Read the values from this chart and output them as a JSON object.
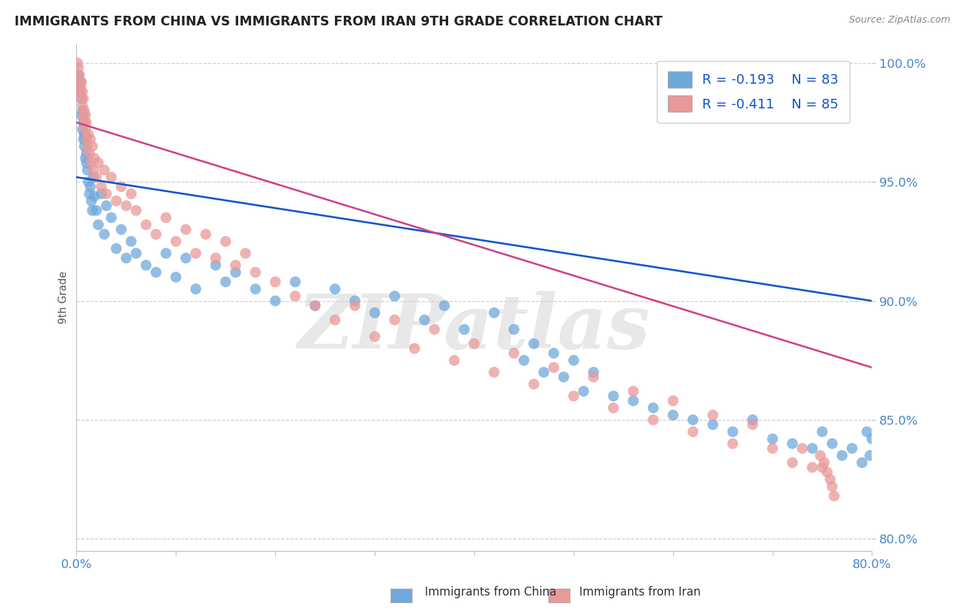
{
  "title": "IMMIGRANTS FROM CHINA VS IMMIGRANTS FROM IRAN 9TH GRADE CORRELATION CHART",
  "source_text": "Source: ZipAtlas.com",
  "ylabel": "9th Grade",
  "xlim": [
    0.0,
    0.8
  ],
  "ylim": [
    0.795,
    1.008
  ],
  "yticks": [
    0.8,
    0.85,
    0.9,
    0.95,
    1.0
  ],
  "ytick_labels": [
    "80.0%",
    "85.0%",
    "90.0%",
    "95.0%",
    "100.0%"
  ],
  "xticks": [
    0.0,
    0.1,
    0.2,
    0.3,
    0.4,
    0.5,
    0.6,
    0.7,
    0.8
  ],
  "china_R": -0.193,
  "china_N": 83,
  "iran_R": -0.411,
  "iran_N": 85,
  "china_color": "#6fa8dc",
  "iran_color": "#ea9999",
  "china_line_color": "#1155cc",
  "iran_line_color": "#cc4488",
  "watermark_color": "#DDDDDD",
  "background_color": "#FFFFFF",
  "china_line_x0": 0.0,
  "china_line_y0": 0.952,
  "china_line_x1": 0.8,
  "china_line_y1": 0.9,
  "iran_line_x0": 0.0,
  "iran_line_y0": 0.975,
  "iran_line_x1": 0.8,
  "iran_line_y1": 0.872,
  "china_scatter_x": [
    0.002,
    0.003,
    0.004,
    0.005,
    0.005,
    0.006,
    0.006,
    0.007,
    0.007,
    0.008,
    0.008,
    0.009,
    0.009,
    0.01,
    0.01,
    0.011,
    0.012,
    0.013,
    0.014,
    0.015,
    0.016,
    0.017,
    0.018,
    0.02,
    0.022,
    0.025,
    0.028,
    0.03,
    0.035,
    0.04,
    0.045,
    0.05,
    0.055,
    0.06,
    0.07,
    0.08,
    0.09,
    0.1,
    0.11,
    0.12,
    0.14,
    0.15,
    0.16,
    0.18,
    0.2,
    0.22,
    0.24,
    0.26,
    0.28,
    0.3,
    0.32,
    0.35,
    0.37,
    0.39,
    0.42,
    0.44,
    0.45,
    0.46,
    0.47,
    0.48,
    0.49,
    0.5,
    0.51,
    0.52,
    0.54,
    0.56,
    0.58,
    0.6,
    0.62,
    0.64,
    0.66,
    0.68,
    0.7,
    0.72,
    0.74,
    0.75,
    0.76,
    0.77,
    0.78,
    0.79,
    0.795,
    0.798,
    0.8
  ],
  "china_scatter_y": [
    0.995,
    0.988,
    0.992,
    0.978,
    0.985,
    0.972,
    0.98,
    0.968,
    0.975,
    0.965,
    0.97,
    0.96,
    0.968,
    0.958,
    0.962,
    0.955,
    0.95,
    0.945,
    0.948,
    0.942,
    0.938,
    0.952,
    0.944,
    0.938,
    0.932,
    0.945,
    0.928,
    0.94,
    0.935,
    0.922,
    0.93,
    0.918,
    0.925,
    0.92,
    0.915,
    0.912,
    0.92,
    0.91,
    0.918,
    0.905,
    0.915,
    0.908,
    0.912,
    0.905,
    0.9,
    0.908,
    0.898,
    0.905,
    0.9,
    0.895,
    0.902,
    0.892,
    0.898,
    0.888,
    0.895,
    0.888,
    0.875,
    0.882,
    0.87,
    0.878,
    0.868,
    0.875,
    0.862,
    0.87,
    0.86,
    0.858,
    0.855,
    0.852,
    0.85,
    0.848,
    0.845,
    0.85,
    0.842,
    0.84,
    0.838,
    0.845,
    0.84,
    0.835,
    0.838,
    0.832,
    0.845,
    0.835,
    0.842
  ],
  "iran_scatter_x": [
    0.001,
    0.002,
    0.003,
    0.003,
    0.004,
    0.004,
    0.005,
    0.005,
    0.006,
    0.006,
    0.007,
    0.007,
    0.008,
    0.008,
    0.009,
    0.009,
    0.01,
    0.01,
    0.011,
    0.012,
    0.013,
    0.014,
    0.015,
    0.016,
    0.017,
    0.018,
    0.02,
    0.022,
    0.025,
    0.028,
    0.03,
    0.035,
    0.04,
    0.045,
    0.05,
    0.055,
    0.06,
    0.07,
    0.08,
    0.09,
    0.1,
    0.11,
    0.12,
    0.13,
    0.14,
    0.15,
    0.16,
    0.17,
    0.18,
    0.2,
    0.22,
    0.24,
    0.26,
    0.28,
    0.3,
    0.32,
    0.34,
    0.36,
    0.38,
    0.4,
    0.42,
    0.44,
    0.46,
    0.48,
    0.5,
    0.52,
    0.54,
    0.56,
    0.58,
    0.6,
    0.62,
    0.64,
    0.66,
    0.68,
    0.7,
    0.72,
    0.73,
    0.74,
    0.748,
    0.75,
    0.752,
    0.755,
    0.758,
    0.76,
    0.762
  ],
  "iran_scatter_y": [
    1.0,
    0.998,
    0.995,
    0.992,
    0.99,
    0.988,
    0.985,
    0.992,
    0.982,
    0.988,
    0.978,
    0.985,
    0.975,
    0.98,
    0.972,
    0.978,
    0.968,
    0.975,
    0.965,
    0.97,
    0.962,
    0.968,
    0.958,
    0.965,
    0.955,
    0.96,
    0.952,
    0.958,
    0.948,
    0.955,
    0.945,
    0.952,
    0.942,
    0.948,
    0.94,
    0.945,
    0.938,
    0.932,
    0.928,
    0.935,
    0.925,
    0.93,
    0.92,
    0.928,
    0.918,
    0.925,
    0.915,
    0.92,
    0.912,
    0.908,
    0.902,
    0.898,
    0.892,
    0.898,
    0.885,
    0.892,
    0.88,
    0.888,
    0.875,
    0.882,
    0.87,
    0.878,
    0.865,
    0.872,
    0.86,
    0.868,
    0.855,
    0.862,
    0.85,
    0.858,
    0.845,
    0.852,
    0.84,
    0.848,
    0.838,
    0.832,
    0.838,
    0.83,
    0.835,
    0.83,
    0.832,
    0.828,
    0.825,
    0.822,
    0.818
  ]
}
